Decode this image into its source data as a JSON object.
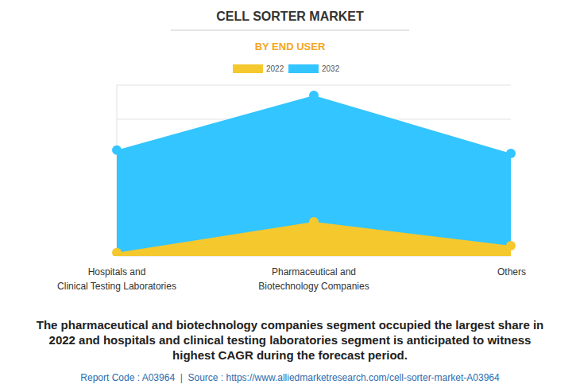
{
  "chart_data": {
    "type": "area",
    "title": "CELL SORTER MARKET",
    "subtitle": "BY END USER",
    "categories": [
      "Hospitals and\nClinical Testing Laboratories",
      "Pharmaceutical and\nBiotechnology Companies",
      "Others"
    ],
    "series": [
      {
        "name": "2022",
        "color": "#f5c82e",
        "values": [
          0.1,
          1.0,
          0.3
        ]
      },
      {
        "name": "2032",
        "color": "#33c5ff",
        "values": [
          3.1,
          4.7,
          3.0
        ]
      }
    ],
    "ylim": [
      0,
      5
    ],
    "yticks": [
      0,
      1,
      2,
      3,
      4,
      5
    ],
    "grid": true,
    "tick_labels": "x",
    "marker": "circle",
    "legend": "top",
    "annotations": [
      "The pharmaceutical and biotechnology companies segment occupied the largest share in\n2022 and hospitals and clinical testing laboratories segment is anticipated to witness\nhighest CAGR during the forecast period."
    ],
    "source": "Report Code : A03964  |  Source : https://www.alliedmarketresearch.com/cell-sorter-market-A03964"
  }
}
